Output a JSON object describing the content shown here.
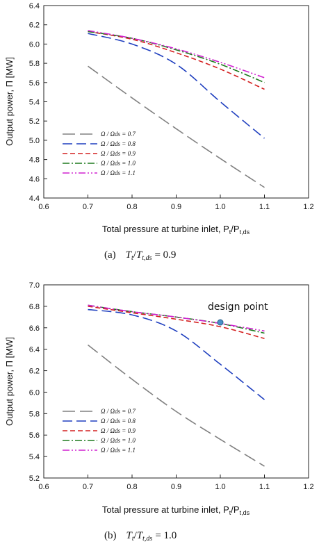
{
  "chart_data": [
    {
      "type": "line",
      "xlabel": "Total pressure at turbine inlet, P",
      "xlabel_sub": "t",
      "xlabel_sep": "/P",
      "xlabel_sub2": "t,ds",
      "ylabel": "Output power, Π [MW]",
      "xlim": [
        0.6,
        1.2
      ],
      "ylim": [
        4.4,
        6.4
      ],
      "xticks": [
        "0.6",
        "0.7",
        "0.8",
        "0.9",
        "1.0",
        "1.1",
        "1.2"
      ],
      "yticks": [
        "4.4",
        "4.6",
        "4.8",
        "5.0",
        "5.2",
        "5.4",
        "5.6",
        "5.8",
        "6.0",
        "6.2",
        "6.4"
      ],
      "grid": false,
      "legend_position": "bottom-left",
      "caption_label": "(a)",
      "caption_eq": "T",
      "caption_sub": "t",
      "caption_slash": "/",
      "caption_sub2": "t,ds",
      "caption_value": "= 0.9",
      "x": [
        0.7,
        0.8,
        0.9,
        1.0,
        1.1
      ],
      "series": [
        {
          "name": "Ω / Ωds = 0.7",
          "color": "#808080",
          "dash": "18,7",
          "values": [
            5.77,
            5.44,
            5.12,
            4.81,
            4.51
          ]
        },
        {
          "name": "Ω / Ωds = 0.8",
          "color": "#1f3fbf",
          "dash": "14,6",
          "values": [
            6.11,
            6.0,
            5.79,
            5.4,
            5.02
          ]
        },
        {
          "name": "Ω / Ωds = 0.9",
          "color": "#d42020",
          "dash": "7,4",
          "values": [
            6.13,
            6.05,
            5.91,
            5.74,
            5.53
          ]
        },
        {
          "name": "Ω / Ωds = 1.0",
          "color": "#1e7a1e",
          "dash": "10,3,2,3",
          "values": [
            6.13,
            6.06,
            5.94,
            5.79,
            5.6
          ]
        },
        {
          "name": "Ω / Ωds = 1.1",
          "color": "#d020d0",
          "dash": "10,3,2,3,2,3",
          "values": [
            6.14,
            6.06,
            5.95,
            5.81,
            5.65
          ]
        }
      ]
    },
    {
      "type": "line",
      "xlabel": "Total pressure at turbine inlet, P",
      "xlabel_sub": "t",
      "xlabel_sep": "/P",
      "xlabel_sub2": "t,ds",
      "ylabel": "Output power, Π [MW]",
      "xlim": [
        0.6,
        1.2
      ],
      "ylim": [
        5.2,
        7.0
      ],
      "xticks": [
        "0.6",
        "0.7",
        "0.8",
        "0.9",
        "1.0",
        "1.1",
        "1.2"
      ],
      "yticks": [
        "5.2",
        "5.4",
        "5.6",
        "5.8",
        "6.0",
        "6.2",
        "6.4",
        "6.6",
        "6.8",
        "7.0"
      ],
      "grid": false,
      "legend_position": "bottom-left",
      "caption_label": "(b)",
      "caption_eq": "T",
      "caption_sub": "t",
      "caption_slash": "/",
      "caption_sub2": "t,ds",
      "caption_value": "= 1.0",
      "annotation": {
        "text": "design point",
        "x": 1.0,
        "y": 6.65
      },
      "x": [
        0.7,
        0.8,
        0.9,
        1.0,
        1.1
      ],
      "series": [
        {
          "name": "Ω / Ωds = 0.7",
          "color": "#808080",
          "dash": "18,7",
          "values": [
            6.44,
            6.12,
            5.82,
            5.56,
            5.31
          ]
        },
        {
          "name": "Ω / Ωds = 0.8",
          "color": "#1f3fbf",
          "dash": "14,6",
          "values": [
            6.77,
            6.72,
            6.57,
            6.26,
            5.93
          ]
        },
        {
          "name": "Ω / Ωds = 0.9",
          "color": "#d42020",
          "dash": "7,4",
          "values": [
            6.8,
            6.74,
            6.68,
            6.61,
            6.5
          ]
        },
        {
          "name": "Ω / Ωds = 1.0",
          "color": "#1e7a1e",
          "dash": "10,3,2,3",
          "values": [
            6.81,
            6.75,
            6.7,
            6.64,
            6.55
          ]
        },
        {
          "name": "Ω / Ωds = 1.1",
          "color": "#d020d0",
          "dash": "10,3,2,3,2,3",
          "values": [
            6.81,
            6.75,
            6.7,
            6.64,
            6.57
          ]
        }
      ]
    }
  ]
}
